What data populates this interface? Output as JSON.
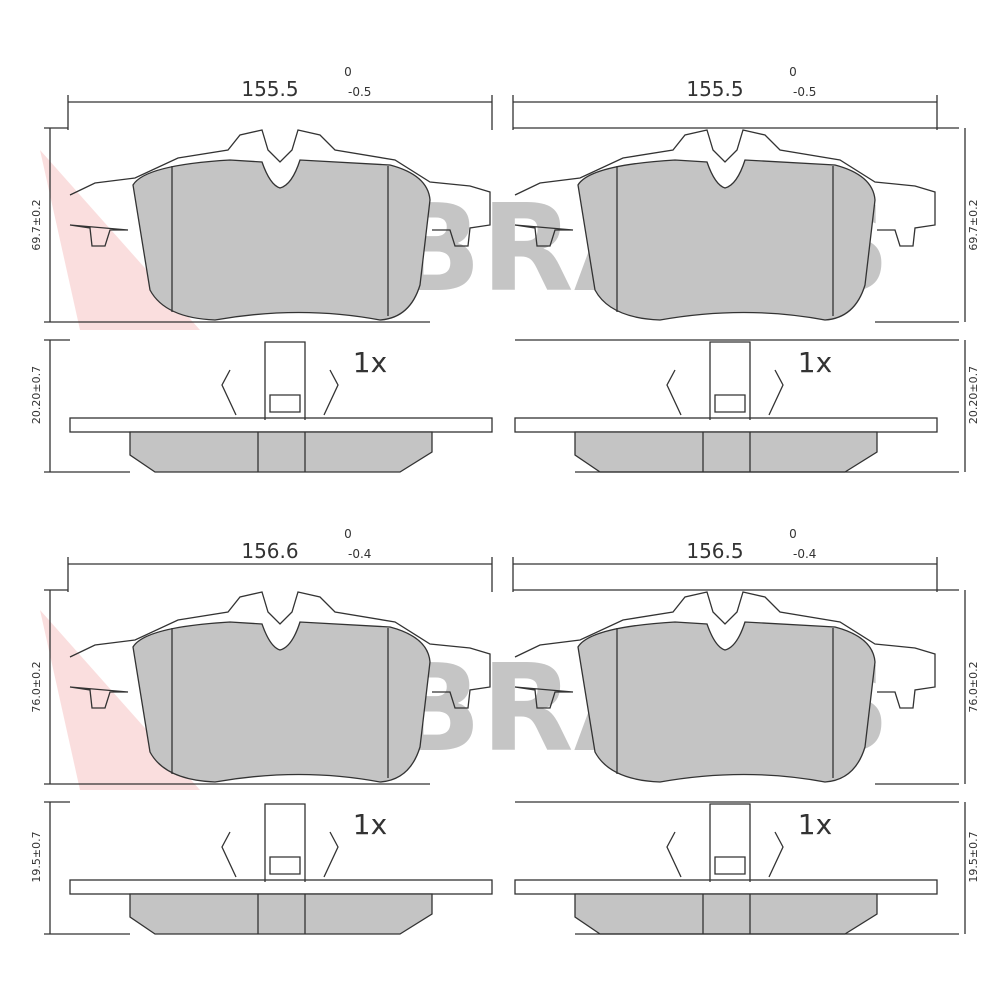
{
  "watermark": "BRAXIS",
  "panels": [
    {
      "width": "155.5",
      "tol_upper": "0",
      "tol_lower": "-0.5",
      "height": "69.7±0.2",
      "thickness": "20.20±0.7",
      "quantity": "1x"
    },
    {
      "width": "155.5",
      "tol_upper": "0",
      "tol_lower": "-0.5",
      "height": "69.7±0.2",
      "thickness": "20.20±0.7",
      "quantity": "1x"
    },
    {
      "width": "156.6",
      "tol_upper": "0",
      "tol_lower": "-0.4",
      "height": "76.0±0.2",
      "thickness": "19.5±0.7",
      "quantity": "1x"
    },
    {
      "width": "156.5",
      "tol_upper": "0",
      "tol_lower": "-0.4",
      "height": "76.0±0.2",
      "thickness": "19.5±0.7",
      "quantity": "1x"
    }
  ]
}
